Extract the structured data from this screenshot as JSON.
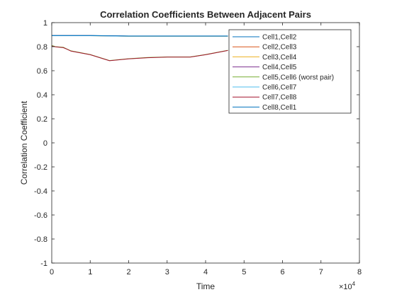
{
  "chart_data": {
    "type": "line",
    "title": "Correlation Coefficients Between Adjacent Pairs",
    "xlabel": "Time",
    "ylabel": "Correlation Coefficient",
    "xlim": [
      0,
      80000
    ],
    "ylim": [
      -1,
      1
    ],
    "x_ticks": [
      0,
      10000,
      20000,
      30000,
      40000,
      50000,
      60000,
      70000,
      80000
    ],
    "x_tick_labels": [
      "0",
      "1",
      "2",
      "3",
      "4",
      "5",
      "6",
      "7",
      "8"
    ],
    "x_exponent_label": "×10",
    "x_exponent_power": "4",
    "y_ticks": [
      -1,
      -0.8,
      -0.6,
      -0.4,
      -0.2,
      0,
      0.2,
      0.4,
      0.6,
      0.8,
      1
    ],
    "y_tick_labels": [
      "-1",
      "-0.8",
      "-0.6",
      "-0.4",
      "-0.2",
      "0",
      "0.2",
      "0.4",
      "0.6",
      "0.8",
      "1"
    ],
    "grid": false,
    "legend_position": "top-right",
    "series": [
      {
        "name": "Cell1,Cell2",
        "color": "#0072BD",
        "x": [
          0,
          10000,
          20000,
          30000,
          40000,
          45800
        ],
        "y": [
          0.893,
          0.893,
          0.888,
          0.888,
          0.888,
          0.888
        ]
      },
      {
        "name": "Cell2,Cell3",
        "color": "#D95319",
        "x": [
          0,
          10000,
          20000,
          30000,
          40000,
          45800
        ],
        "y": [
          0.892,
          0.892,
          0.887,
          0.887,
          0.887,
          0.887
        ]
      },
      {
        "name": "Cell3,Cell4",
        "color": "#EDB120",
        "x": [
          0,
          10000,
          20000,
          30000,
          40000,
          45800
        ],
        "y": [
          0.891,
          0.891,
          0.887,
          0.887,
          0.887,
          0.887
        ]
      },
      {
        "name": "Cell4,Cell5",
        "color": "#7E2F8E",
        "x": [
          0,
          10000,
          20000,
          30000,
          40000,
          45800
        ],
        "y": [
          0.892,
          0.892,
          0.888,
          0.888,
          0.888,
          0.888
        ]
      },
      {
        "name": "Cell5,Cell6 (worst pair)",
        "color": "#77AC30",
        "x": [
          0,
          1000,
          3000,
          4000,
          5000,
          10000,
          15000,
          20000,
          25000,
          30000,
          36000,
          40000,
          45800
        ],
        "y": [
          0.81,
          0.8,
          0.795,
          0.78,
          0.765,
          0.735,
          0.685,
          0.7,
          0.71,
          0.715,
          0.715,
          0.735,
          0.77
        ]
      },
      {
        "name": "Cell6,Cell7",
        "color": "#4DBEEE",
        "x": [
          0,
          10000,
          20000,
          30000,
          40000,
          45800
        ],
        "y": [
          0.891,
          0.891,
          0.887,
          0.887,
          0.887,
          0.887
        ]
      },
      {
        "name": "Cell7,Cell8",
        "color": "#A2142F",
        "x": [
          0,
          1000,
          3000,
          4000,
          5000,
          10000,
          15000,
          20000,
          25000,
          30000,
          36000,
          40000,
          45800
        ],
        "y": [
          0.805,
          0.798,
          0.792,
          0.778,
          0.763,
          0.733,
          0.683,
          0.698,
          0.708,
          0.713,
          0.713,
          0.733,
          0.768
        ]
      },
      {
        "name": "Cell8,Cell1",
        "color": "#0072BD",
        "x": [
          0,
          10000,
          20000,
          30000,
          40000,
          45800
        ],
        "y": [
          0.893,
          0.893,
          0.889,
          0.889,
          0.889,
          0.889
        ]
      }
    ]
  }
}
